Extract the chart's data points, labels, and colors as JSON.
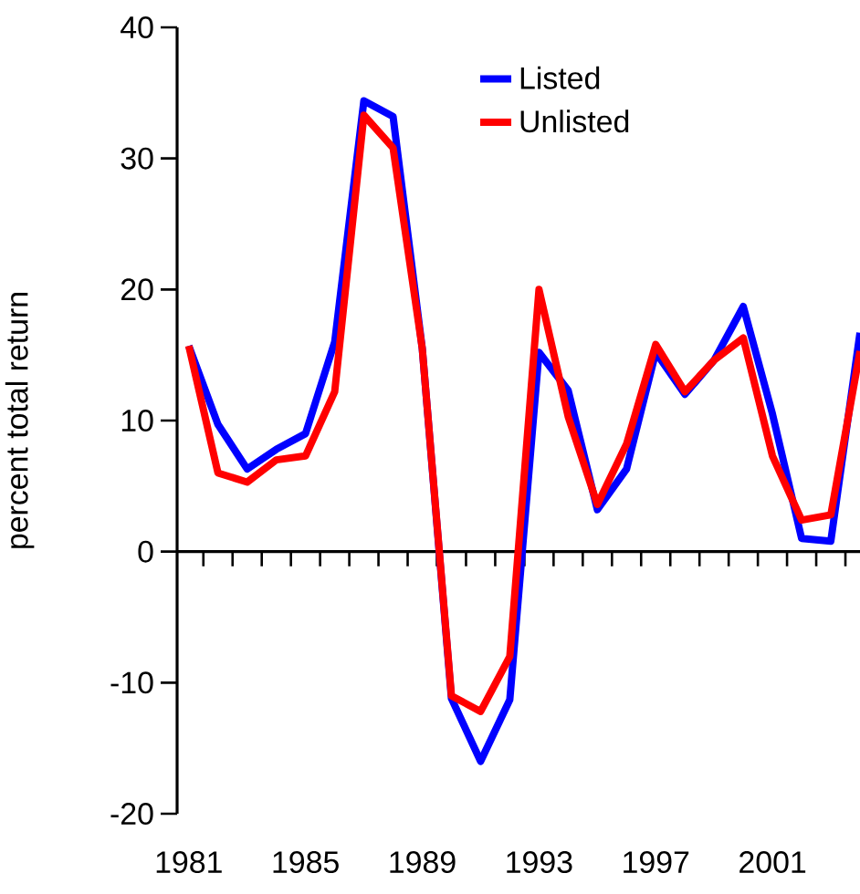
{
  "chart_data": {
    "type": "line",
    "ylabel": "percent total return",
    "categories": [
      "1981",
      null,
      null,
      null,
      "1985",
      null,
      null,
      null,
      "1989",
      null,
      null,
      null,
      "1993",
      null,
      null,
      null,
      "1997",
      null,
      null,
      null,
      "2001",
      null,
      null,
      null
    ],
    "series": [
      {
        "name": "Listed",
        "color": "#0000ff",
        "values": [
          15.7,
          9.7,
          6.3,
          7.8,
          9.0,
          16.0,
          34.4,
          33.2,
          15.5,
          -11.2,
          -16.0,
          -11.3,
          15.2,
          12.3,
          3.2,
          6.3,
          15.2,
          12.0,
          14.6,
          18.7,
          10.5,
          1.0,
          0.8,
          16.7
        ]
      },
      {
        "name": "Unlisted",
        "color": "#ff0000",
        "values": [
          15.7,
          6.0,
          5.3,
          7.0,
          7.3,
          12.2,
          33.3,
          30.8,
          15.5,
          -11.0,
          -12.2,
          -8.0,
          20.0,
          10.3,
          3.6,
          8.2,
          15.8,
          12.2,
          14.6,
          16.3,
          7.3,
          2.4,
          2.8,
          15.3
        ]
      }
    ],
    "ylim": [
      -20,
      40
    ],
    "yticks": [
      -20,
      -10,
      0,
      10,
      20,
      30,
      40
    ],
    "legend": "top right",
    "marker": "none",
    "line_style": "solid"
  }
}
